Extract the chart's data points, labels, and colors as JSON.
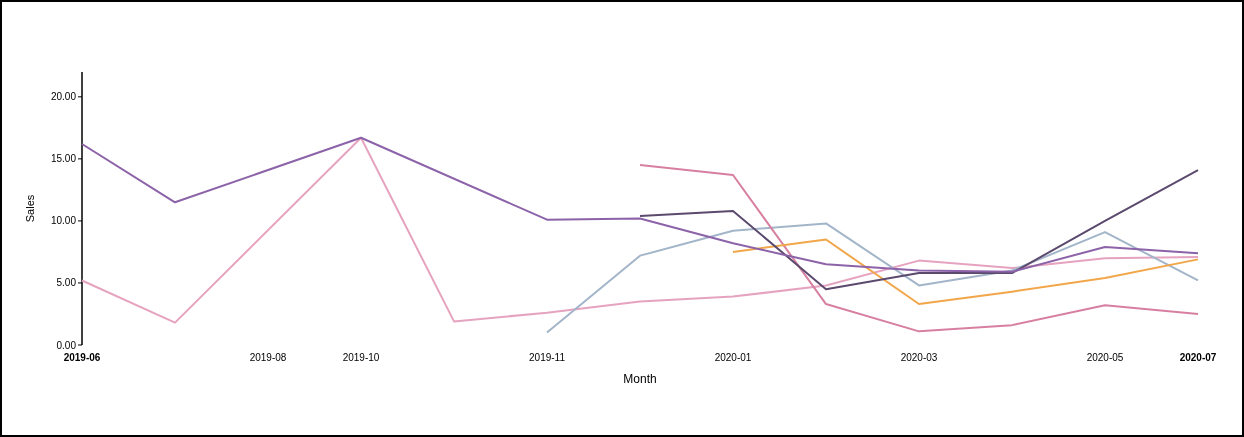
{
  "chart_data": {
    "type": "line",
    "xlabel": "Month",
    "ylabel": "Sales",
    "categories": [
      "2019-06",
      null,
      "2019-08",
      "2019-10",
      null,
      "2019-11",
      null,
      "2020-01",
      null,
      "2020-03",
      null,
      "2020-05",
      "2020-07"
    ],
    "ylim": [
      0,
      22
    ],
    "yticks": [
      {
        "value": 0,
        "label": "0.00"
      },
      {
        "value": 5,
        "label": "5.00"
      },
      {
        "value": 10,
        "label": "10.00"
      },
      {
        "value": 15,
        "label": "15.00"
      },
      {
        "value": 20,
        "label": "20.00"
      }
    ],
    "grid": false,
    "marker": "none",
    "line_style": "solid",
    "series": [
      {
        "color": "#e6a3bf",
        "values": [
          5.2,
          1.8,
          null,
          16.7,
          1.9,
          2.6,
          3.5,
          3.9,
          4.8,
          6.8,
          6.2,
          7,
          7.1
        ]
      },
      {
        "color": "#a3b5c9",
        "values": [
          null,
          null,
          null,
          null,
          null,
          1,
          7.2,
          9.2,
          9.8,
          4.8,
          6,
          9.1,
          5.2
        ]
      },
      {
        "color": "#d77fa0",
        "values": [
          null,
          null,
          null,
          null,
          null,
          null,
          14.5,
          13.7,
          3.3,
          1.1,
          1.6,
          3.2,
          2.5
        ]
      },
      {
        "color": "#f2a64a",
        "values": [
          null,
          null,
          null,
          null,
          null,
          null,
          null,
          7.5,
          8.5,
          3.3,
          4.3,
          5.4,
          6.9
        ]
      },
      {
        "color": "#5b4a6e",
        "values": [
          null,
          null,
          null,
          null,
          null,
          null,
          10.4,
          10.8,
          4.5,
          5.8,
          5.8,
          10,
          14.1
        ]
      },
      {
        "color": "#8c62a8",
        "values": [
          16.2,
          11.5,
          null,
          16.7,
          null,
          10.1,
          10.2,
          8.2,
          6.5,
          6,
          5.9,
          7.9,
          7.4
        ]
      }
    ]
  }
}
